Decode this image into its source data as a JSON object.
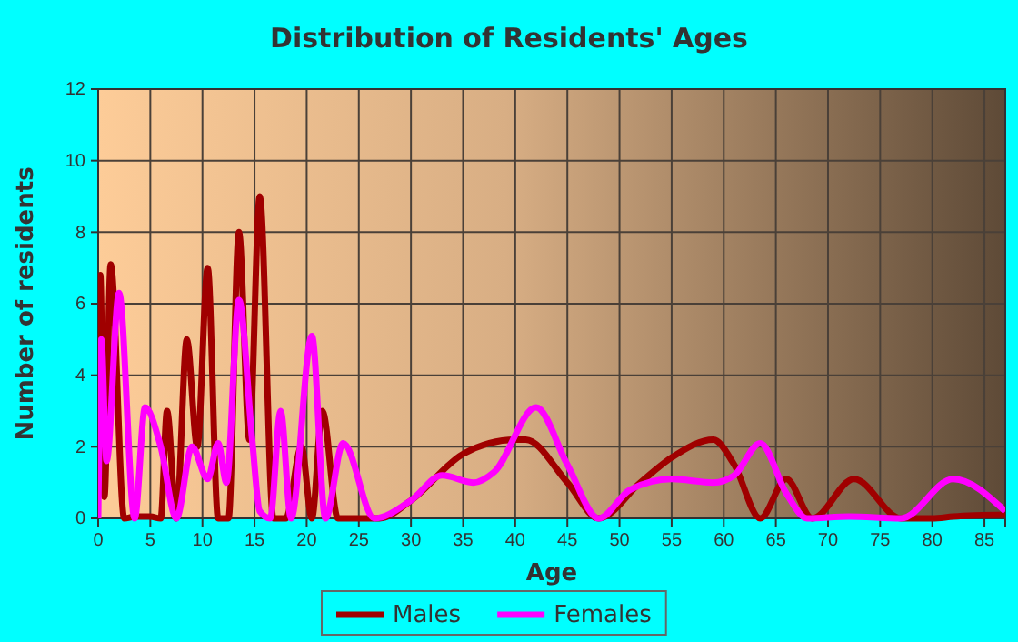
{
  "chart_data": {
    "type": "line",
    "title": "Distribution of Residents' Ages",
    "xlabel": "Age",
    "ylabel": "Number of residents",
    "xlim": [
      0,
      87
    ],
    "xticks": [
      0,
      5,
      10,
      15,
      20,
      25,
      30,
      35,
      40,
      45,
      50,
      55,
      60,
      65,
      70,
      75,
      80,
      85
    ],
    "ylim": [
      0,
      12
    ],
    "yticks": [
      0,
      2,
      4,
      6,
      8,
      10,
      12
    ],
    "grid": true,
    "legend": "bottom",
    "marker": "none",
    "line_style": "solid",
    "series": [
      {
        "name": "Males",
        "color": "#a00000",
        "x": [
          0,
          0.2,
          0.6,
          1.2,
          2.5,
          3.5,
          5,
          6,
          6.6,
          7.5,
          8.5,
          9.5,
          10.5,
          11.5,
          12.5,
          13.5,
          14.5,
          15.5,
          16.8,
          18,
          19.5,
          20.5,
          21.5,
          23,
          27,
          30,
          35,
          40,
          41,
          45,
          48,
          52,
          55,
          59,
          61,
          63.5,
          66,
          68.5,
          72.5,
          77,
          80,
          82,
          87
        ],
        "values": [
          5,
          6.8,
          0.6,
          7.1,
          0,
          0.05,
          0.05,
          0,
          3,
          0,
          5,
          2,
          7,
          0,
          0,
          8,
          2.2,
          9,
          0,
          0,
          2,
          0,
          3,
          0,
          0,
          0.5,
          1.8,
          2.2,
          2.2,
          1,
          0,
          1,
          1.7,
          2.2,
          1.5,
          0,
          1.1,
          0,
          1.1,
          0,
          0,
          0.05,
          0.1
        ]
      },
      {
        "name": "Females",
        "color": "#ff00ff",
        "x": [
          0,
          0.3,
          0.8,
          2,
          3.5,
          4.5,
          6,
          7.5,
          9,
          10.5,
          11.5,
          12.3,
          13.5,
          14.8,
          15.5,
          16.5,
          17.5,
          18.5,
          20.5,
          21.8,
          23.5,
          26.5,
          30,
          33,
          36,
          38,
          42,
          45,
          48,
          51,
          55,
          59,
          61,
          63.5,
          66,
          68,
          72,
          77,
          82,
          87
        ],
        "values": [
          0,
          5,
          1.6,
          6.3,
          0,
          3.1,
          2,
          0,
          2,
          1.1,
          2.1,
          1,
          6.1,
          2.1,
          0.2,
          0,
          3,
          0,
          5.1,
          0,
          2.1,
          0,
          0.5,
          1.2,
          1,
          1.3,
          3.1,
          1.5,
          0,
          0.8,
          1.1,
          1,
          1.2,
          2.1,
          0.7,
          0,
          0.05,
          0,
          1.1,
          0.2
        ]
      }
    ]
  }
}
